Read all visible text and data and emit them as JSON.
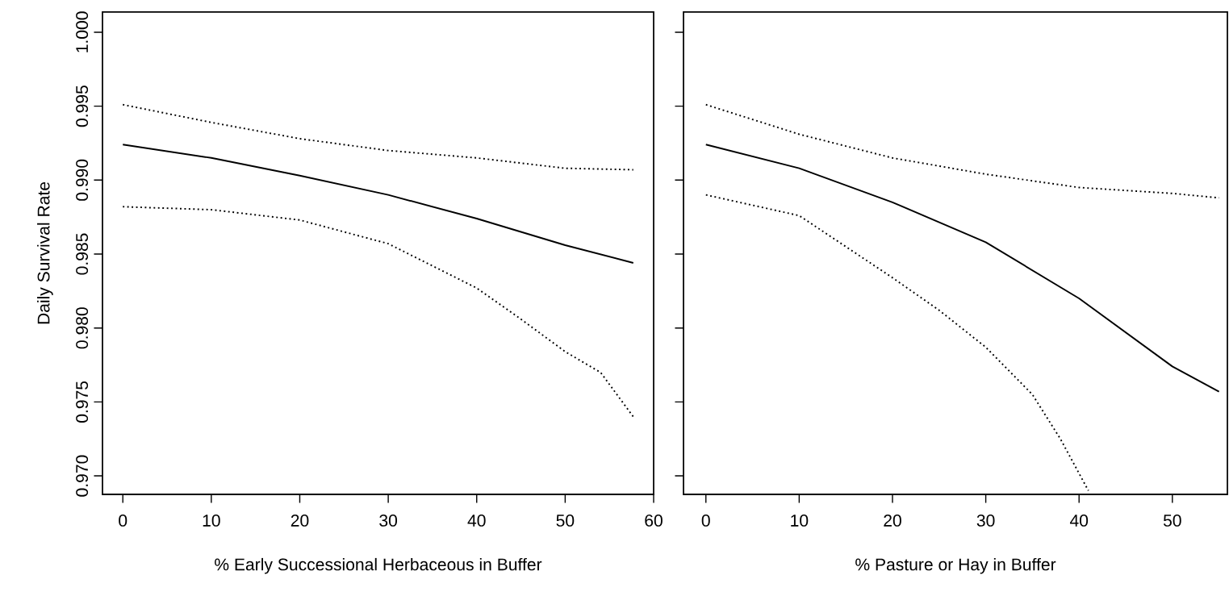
{
  "chart_data": [
    {
      "type": "line",
      "xlabel": "% Early Successional Herbaceous in Buffer",
      "ylabel": "Daily Survival Rate",
      "xlim": [
        -2.3,
        60
      ],
      "ylim": [
        0.96875,
        1.00136
      ],
      "xticks": [
        0,
        10,
        20,
        30,
        40,
        50,
        60
      ],
      "yticks": [
        {
          "value": 0.97,
          "label": "0.970"
        },
        {
          "value": 0.975,
          "label": "0.975"
        },
        {
          "value": 0.98,
          "label": "0.980"
        },
        {
          "value": 0.985,
          "label": "0.985"
        },
        {
          "value": 0.99,
          "label": "0.990"
        },
        {
          "value": 0.995,
          "label": "0.995"
        },
        {
          "value": 1.0,
          "label": "1.000"
        }
      ],
      "grid": false,
      "series": [
        {
          "color": "#000000",
          "line_style": "solid",
          "x": [
            0,
            10,
            20,
            30,
            40,
            50,
            57.7
          ],
          "values": [
            0.9924,
            0.9915,
            0.9903,
            0.989,
            0.9874,
            0.9856,
            0.9844
          ]
        },
        {
          "color": "#000000",
          "line_style": "dotted",
          "x": [
            0,
            10,
            20,
            30,
            40,
            50,
            57.7
          ],
          "values": [
            0.9951,
            0.9939,
            0.9928,
            0.992,
            0.9915,
            0.9908,
            0.9907
          ]
        },
        {
          "color": "#000000",
          "line_style": "dotted",
          "x": [
            0,
            10,
            20,
            30,
            40,
            45,
            50,
            54,
            57.7
          ],
          "values": [
            0.9882,
            0.988,
            0.9873,
            0.9857,
            0.9827,
            0.9806,
            0.9784,
            0.977,
            0.974
          ]
        }
      ]
    },
    {
      "type": "line",
      "xlabel": "% Pasture or Hay in Buffer",
      "xlim": [
        -2.4,
        55.9
      ],
      "ylim": [
        0.96875,
        1.00136
      ],
      "xticks": [
        0,
        10,
        20,
        30,
        40,
        50
      ],
      "yticks": [
        {
          "value": 0.97,
          "label": null
        },
        {
          "value": 0.975,
          "label": null
        },
        {
          "value": 0.98,
          "label": null
        },
        {
          "value": 0.985,
          "label": null
        },
        {
          "value": 0.99,
          "label": null
        },
        {
          "value": 0.995,
          "label": null
        },
        {
          "value": 1.0,
          "label": null
        }
      ],
      "tick_labels": "x",
      "grid": false,
      "series": [
        {
          "color": "#000000",
          "line_style": "solid",
          "x": [
            0,
            10,
            20,
            30,
            40,
            50,
            55
          ],
          "values": [
            0.9924,
            0.9908,
            0.9885,
            0.9858,
            0.982,
            0.9774,
            0.9757
          ]
        },
        {
          "color": "#000000",
          "line_style": "dotted",
          "x": [
            0,
            10,
            20,
            30,
            40,
            50,
            55
          ],
          "values": [
            0.9951,
            0.9931,
            0.9915,
            0.9904,
            0.9895,
            0.9891,
            0.9888
          ]
        },
        {
          "color": "#000000",
          "line_style": "dotted",
          "x": [
            0,
            10,
            20,
            25,
            30,
            35,
            38,
            41
          ],
          "values": [
            0.989,
            0.9876,
            0.9834,
            0.9812,
            0.9787,
            0.9755,
            0.9725,
            0.969
          ]
        }
      ]
    }
  ]
}
